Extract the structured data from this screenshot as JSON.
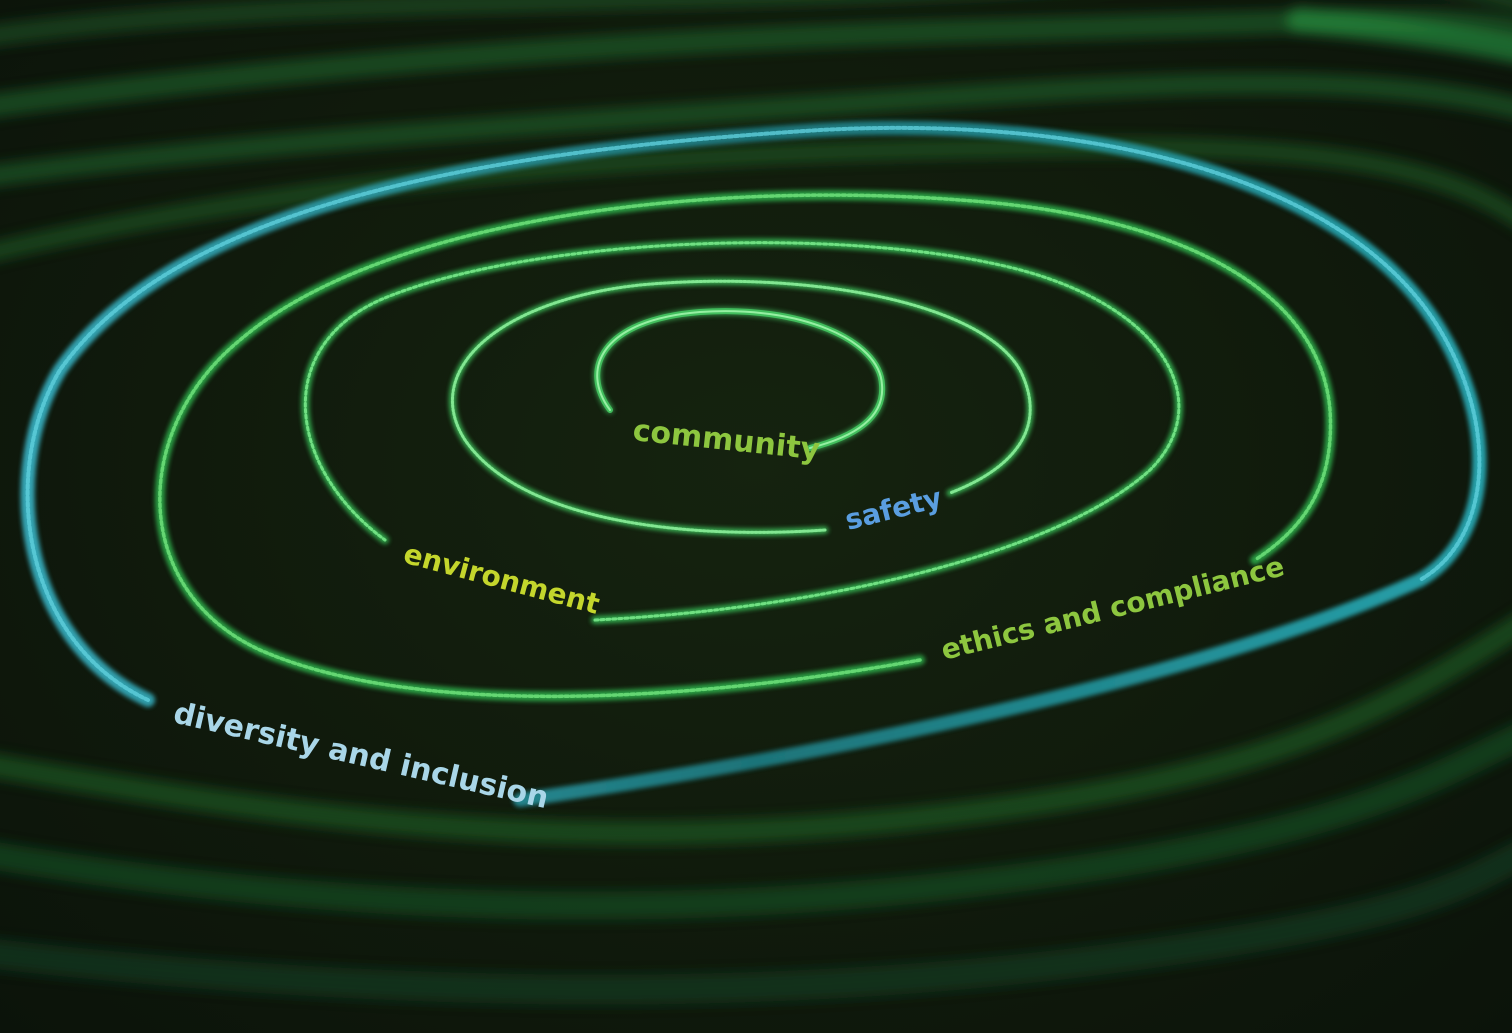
{
  "labels": {
    "community": "community",
    "safety": "safety",
    "environment": "environment",
    "ethics": "ethics and compliance",
    "diversity": "diversity and inclusion"
  },
  "colors": {
    "background": "#111b0d",
    "ring_green": "#3fbf5a",
    "ring_teal": "#2aa0a8",
    "label_lime": "#9acd32",
    "label_yellow": "#c8d82a",
    "label_blue": "#5a9ee0",
    "label_lightblue": "#a9d6e8"
  }
}
